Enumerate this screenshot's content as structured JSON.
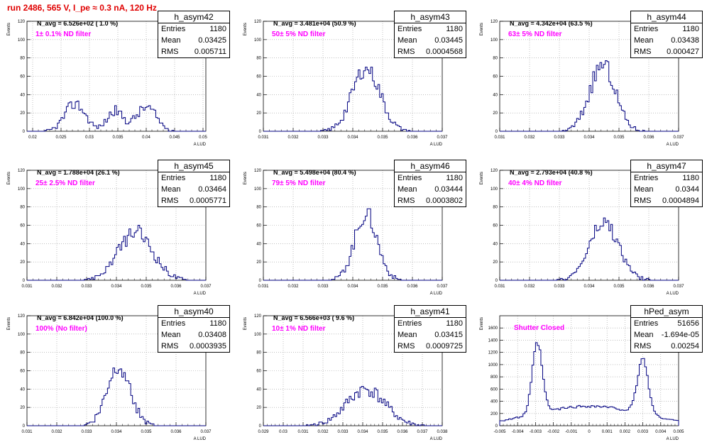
{
  "canvas_title": "run 2486,    565 V, I_pe ≈ 0.3 nA, 120 Hz",
  "stats_labels": {
    "entries": "Entries",
    "mean": "Mean",
    "rms": "RMS"
  },
  "colors": {
    "hist": "#000080",
    "title": "#e00000",
    "annotation": "#ff00ff"
  },
  "chart_data": [
    {
      "type": "bar",
      "name": "h_asym42",
      "ylabel": "Events",
      "xlabel": "A_{LUD}",
      "navg": "N_avg = 6.526e+02 ( 1.0 %)",
      "filter": "1± 0.1% ND filter",
      "entries": "1180",
      "mean": "0.03425",
      "rms": "0.005711",
      "xlim": [
        0.019,
        0.0505
      ],
      "ylim": [
        0,
        120
      ],
      "xticks": [
        "0.02",
        "0.025",
        "0.03",
        "0.035",
        "0.04",
        "0.045",
        "0.05"
      ],
      "xtickv": [
        0.02,
        0.025,
        0.03,
        0.035,
        0.04,
        0.045,
        0.05
      ],
      "yticks": [
        0,
        20,
        40,
        60,
        80,
        100,
        120
      ],
      "shape": [
        {
          "m": 0.0275,
          "s": 0.0018,
          "a": 30
        },
        {
          "m": 0.0345,
          "s": 0.0014,
          "a": 22
        },
        {
          "m": 0.04,
          "s": 0.0018,
          "a": 26
        }
      ],
      "peak": 40,
      "seed": 42
    },
    {
      "type": "bar",
      "name": "h_asym43",
      "ylabel": "Events",
      "xlabel": "A_{LUD}",
      "navg": "N_avg = 3.481e+04 (50.9 %)",
      "filter": "50± 5% ND filter",
      "entries": "1180",
      "mean": "0.03445",
      "rms": "0.0004568",
      "xlim": [
        0.031,
        0.037
      ],
      "ylim": [
        0,
        120
      ],
      "xticks": [
        "0.031",
        "0.032",
        "0.033",
        "0.034",
        "0.035",
        "0.036",
        "0.037"
      ],
      "xtickv": [
        0.031,
        0.032,
        0.033,
        0.034,
        0.035,
        0.036,
        0.037
      ],
      "yticks": [
        0,
        20,
        40,
        60,
        80,
        100,
        120
      ],
      "shape": [
        {
          "m": 0.03445,
          "s": 0.00046,
          "a": 70
        }
      ],
      "peak": 70,
      "seed": 43
    },
    {
      "type": "bar",
      "name": "h_asym44",
      "ylabel": "Events",
      "xlabel": "A_{LUD}",
      "navg": "N_avg = 4.342e+04 (63.5 %)",
      "filter": "63± 5% ND filter",
      "entries": "1180",
      "mean": "0.03438",
      "rms": "0.000427",
      "xlim": [
        0.031,
        0.037
      ],
      "ylim": [
        0,
        120
      ],
      "xticks": [
        "0.031",
        "0.032",
        "0.033",
        "0.034",
        "0.035",
        "0.036",
        "0.037"
      ],
      "xtickv": [
        0.031,
        0.032,
        0.033,
        0.034,
        0.035,
        0.036,
        0.037
      ],
      "yticks": [
        0,
        20,
        40,
        60,
        80,
        100,
        120
      ],
      "shape": [
        {
          "m": 0.03445,
          "s": 0.00043,
          "a": 72
        }
      ],
      "peak": 86,
      "seed": 44
    },
    {
      "type": "bar",
      "name": "h_asym45",
      "ylabel": "Events",
      "xlabel": "A_{LUD}",
      "navg": "N_avg = 1.788e+04 (26.1 %)",
      "filter": "25± 2.5% ND filter",
      "entries": "1180",
      "mean": "0.03464",
      "rms": "0.0005771",
      "xlim": [
        0.031,
        0.037
      ],
      "ylim": [
        0,
        120
      ],
      "xticks": [
        "0.031",
        "0.032",
        "0.033",
        "0.034",
        "0.035",
        "0.036",
        "0.037"
      ],
      "xtickv": [
        0.031,
        0.032,
        0.033,
        0.034,
        0.035,
        0.036,
        0.037
      ],
      "yticks": [
        0,
        20,
        40,
        60,
        80,
        100,
        120
      ],
      "shape": [
        {
          "m": 0.03464,
          "s": 0.00058,
          "a": 52
        }
      ],
      "peak": 60,
      "seed": 45
    },
    {
      "type": "bar",
      "name": "h_asym46",
      "ylabel": "Events",
      "xlabel": "A_{LUD}",
      "navg": "N_avg = 5.498e+04 (80.4 %)",
      "filter": "79± 5% ND filter",
      "entries": "1180",
      "mean": "0.03444",
      "rms": "0.0003802",
      "xlim": [
        0.031,
        0.037
      ],
      "ylim": [
        0,
        120
      ],
      "xticks": [
        "0.031",
        "0.032",
        "0.033",
        "0.034",
        "0.035",
        "0.036",
        "0.037"
      ],
      "xtickv": [
        0.031,
        0.032,
        0.033,
        0.034,
        0.035,
        0.036,
        0.037
      ],
      "yticks": [
        0,
        20,
        40,
        60,
        80,
        100,
        120
      ],
      "shape": [
        {
          "m": 0.03444,
          "s": 0.00038,
          "a": 72
        }
      ],
      "peak": 83,
      "seed": 46
    },
    {
      "type": "bar",
      "name": "h_asym47",
      "ylabel": "Events",
      "xlabel": "A_{LUD}",
      "navg": "N_avg = 2.793e+04 (40.8 %)",
      "filter": "40± 4% ND filter",
      "entries": "1180",
      "mean": "0.0344",
      "rms": "0.0004894",
      "xlim": [
        0.031,
        0.037
      ],
      "ylim": [
        0,
        120
      ],
      "xticks": [
        "0.031",
        "0.032",
        "0.033",
        "0.034",
        "0.035",
        "0.036",
        "0.037"
      ],
      "xtickv": [
        0.031,
        0.032,
        0.033,
        0.034,
        0.035,
        0.036,
        0.037
      ],
      "yticks": [
        0,
        20,
        40,
        60,
        80,
        100,
        120
      ],
      "shape": [
        {
          "m": 0.0345,
          "s": 0.00049,
          "a": 62
        }
      ],
      "peak": 72,
      "seed": 47
    },
    {
      "type": "bar",
      "name": "h_asym40",
      "ylabel": "Events",
      "xlabel": "A_{LUD}",
      "navg": "N_avg = 6.842e+04 (100.0 %)",
      "filter": "100% (No filter)",
      "entries": "1180",
      "mean": "0.03408",
      "rms": "0.0003935",
      "xlim": [
        0.031,
        0.037
      ],
      "ylim": [
        0,
        120
      ],
      "xticks": [
        "0.031",
        "0.032",
        "0.033",
        "0.034",
        "0.035",
        "0.036",
        "0.037"
      ],
      "xtickv": [
        0.031,
        0.032,
        0.033,
        0.034,
        0.035,
        0.036,
        0.037
      ],
      "yticks": [
        0,
        20,
        40,
        60,
        80,
        100,
        120
      ],
      "shape": [
        {
          "m": 0.03408,
          "s": 0.00039,
          "a": 66
        }
      ],
      "peak": 74,
      "seed": 40
    },
    {
      "type": "bar",
      "name": "h_asym41",
      "ylabel": "Events",
      "xlabel": "A_{LUD}",
      "navg": "N_avg = 6.566e+03 ( 9.6 %)",
      "filter": "10± 1% ND filter",
      "entries": "1180",
      "mean": "0.03415",
      "rms": "0.0009725",
      "xlim": [
        0.029,
        0.038
      ],
      "ylim": [
        0,
        120
      ],
      "xticks": [
        "0.029",
        "0.03",
        "0.031",
        "0.032",
        "0.033",
        "0.034",
        "0.035",
        "0.036",
        "0.037",
        "0.038"
      ],
      "xtickv": [
        0.029,
        0.03,
        0.031,
        0.032,
        0.033,
        0.034,
        0.035,
        0.036,
        0.037,
        0.038
      ],
      "yticks": [
        0,
        20,
        40,
        60,
        80,
        100,
        120
      ],
      "shape": [
        {
          "m": 0.03415,
          "s": 0.00097,
          "a": 40
        }
      ],
      "peak": 50,
      "seed": 41
    },
    {
      "type": "bar",
      "name": "hPed_asym",
      "ylabel": "Events",
      "xlabel": "A_{LUD}",
      "navg": "",
      "filter": "Shutter Closed",
      "entries": "51656",
      "mean": "-1.694e-05",
      "rms": "0.00254",
      "xlim": [
        -0.005,
        0.005
      ],
      "ylim": [
        0,
        1800
      ],
      "xticks": [
        "-0.005",
        "-0.004",
        "-0.003",
        "-0.002",
        "-0.001",
        "0",
        "0.001",
        "0.002",
        "0.003",
        "0.004",
        "0.005"
      ],
      "xtickv": [
        -0.005,
        -0.004,
        -0.003,
        -0.002,
        -0.001,
        0,
        0.001,
        0.002,
        0.003,
        0.004,
        0.005
      ],
      "yticks": [
        0,
        200,
        400,
        600,
        800,
        1000,
        1200,
        1400,
        1600
      ],
      "shape": [
        {
          "m": -0.0029,
          "s": 0.00028,
          "a": 1150
        },
        {
          "m": 0.003,
          "s": 0.0003,
          "a": 900
        },
        {
          "m": 0,
          "s": 0.003,
          "a": 320
        }
      ],
      "peak": 1700,
      "seed": 99,
      "bimodal": true
    }
  ]
}
